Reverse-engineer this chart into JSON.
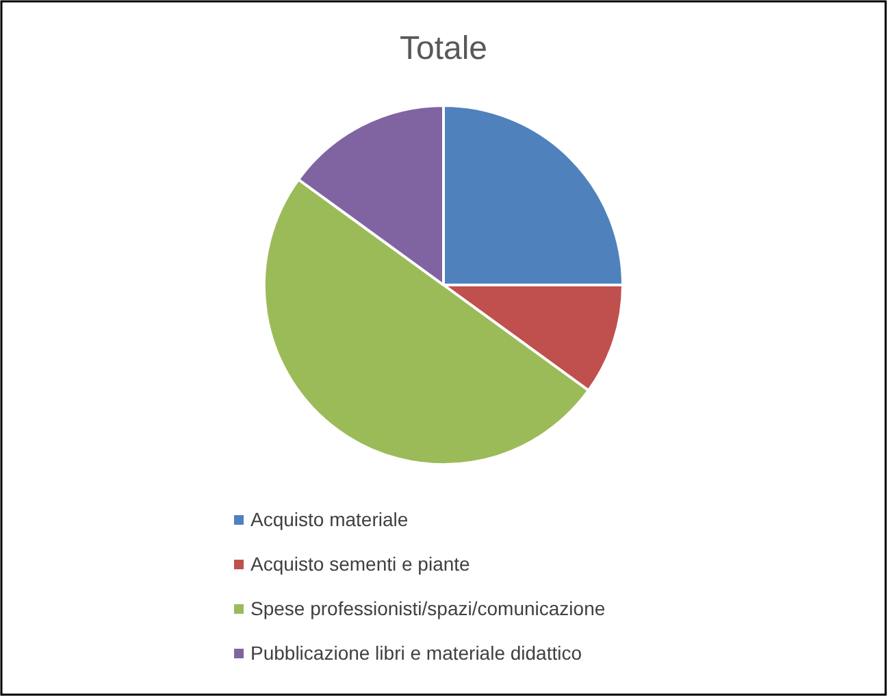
{
  "chart_data": {
    "type": "pie",
    "title": "Totale",
    "categories": [
      "Acquisto materiale",
      "Acquisto sementi e piante",
      "Spese professionisti/spazi/comunicazione",
      "Pubblicazione libri e materiale didattico"
    ],
    "values": [
      25,
      10,
      50,
      15
    ],
    "colors": [
      "#4f81bd",
      "#c0504d",
      "#9bbb59",
      "#8064a2"
    ],
    "legend": "bottom"
  }
}
